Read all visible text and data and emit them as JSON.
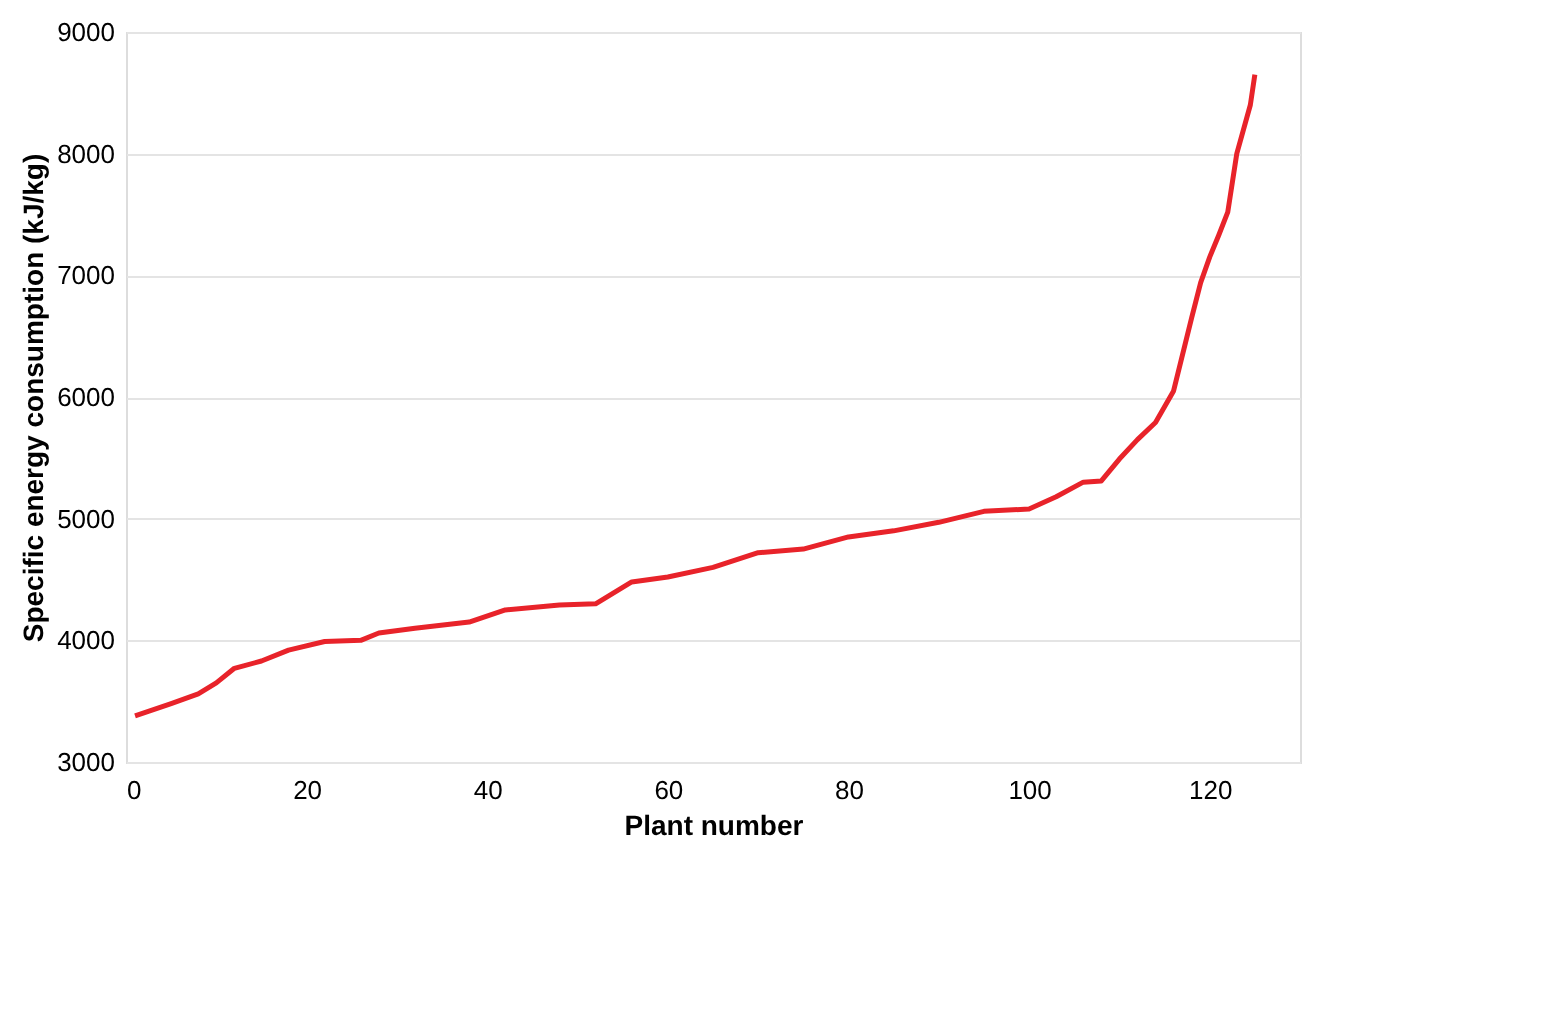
{
  "chart_data": {
    "type": "line",
    "xlabel": "Plant number",
    "ylabel": "Specific energy consumption (kJ/kg)",
    "xlim": [
      0,
      130
    ],
    "xticks": [
      0,
      20,
      40,
      60,
      80,
      100,
      120
    ],
    "ylim": [
      3000,
      9000
    ],
    "yticks": [
      3000,
      4000,
      5000,
      6000,
      7000,
      8000,
      9000
    ],
    "grid": "y",
    "marker": "none",
    "line_style": "solid",
    "series": [
      {
        "color": "#e8232a",
        "x": [
          1,
          5,
          8,
          10,
          12,
          15,
          18,
          22,
          26,
          28,
          32,
          38,
          42,
          48,
          52,
          56,
          60,
          65,
          70,
          75,
          80,
          85,
          90,
          95,
          100,
          103,
          106,
          108,
          110,
          112,
          114,
          116,
          118,
          119,
          120,
          121,
          122,
          123,
          124.5,
          125
        ],
        "values": [
          3380,
          3480,
          3560,
          3650,
          3770,
          3830,
          3920,
          3990,
          4000,
          4060,
          4100,
          4150,
          4250,
          4290,
          4300,
          4480,
          4520,
          4600,
          4720,
          4750,
          4850,
          4900,
          4970,
          5060,
          5080,
          5180,
          5300,
          5310,
          5490,
          5650,
          5790,
          6050,
          6650,
          6940,
          7150,
          7330,
          7520,
          8000,
          8400,
          8650
        ]
      }
    ]
  }
}
